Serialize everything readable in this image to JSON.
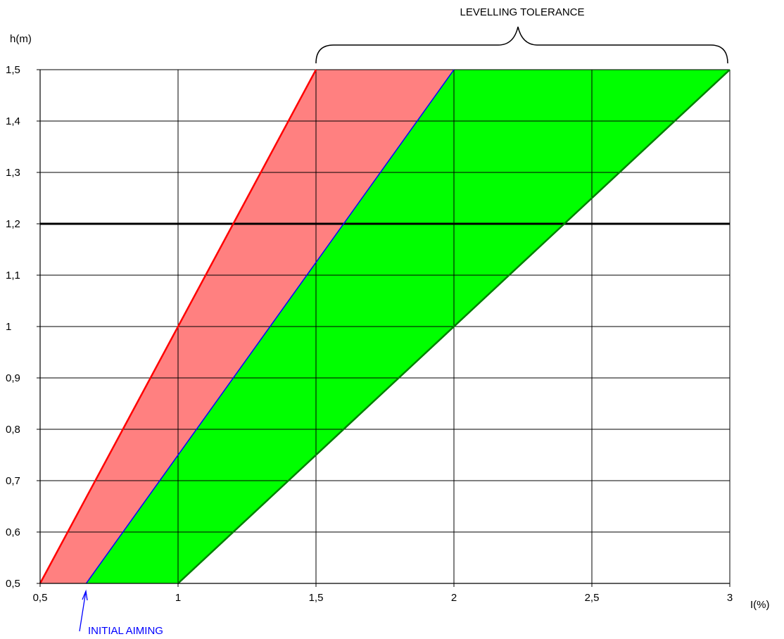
{
  "chart_data": {
    "type": "area",
    "title": "",
    "xlabel": "I(%)",
    "ylabel": "h(m)",
    "xlim": [
      0.5,
      3
    ],
    "ylim": [
      0.5,
      1.5
    ],
    "x_ticks": [
      0.5,
      1,
      1.5,
      2,
      2.5,
      3
    ],
    "x_tick_labels": [
      "0,5",
      "1",
      "1,5",
      "2",
      "2,5",
      "3"
    ],
    "y_ticks": [
      0.5,
      0.6,
      0.7,
      0.8,
      0.9,
      1,
      1.1,
      1.2,
      1.3,
      1.4,
      1.5
    ],
    "y_tick_labels": [
      "0,5",
      "0,6",
      "0,7",
      "0,8",
      "0,9",
      "1",
      "1,1",
      "1,2",
      "1,3",
      "1,4",
      "1,5"
    ],
    "grid": true,
    "legend": "none",
    "regions": [
      {
        "id": "red-zone",
        "color": "#ff8080",
        "points": [
          [
            0.5,
            0.5
          ],
          [
            1.5,
            1.5
          ],
          [
            2,
            1.5
          ],
          [
            0.667,
            0.5
          ]
        ]
      },
      {
        "id": "green-zone",
        "color": "#00ff00",
        "points": [
          [
            0.667,
            0.5
          ],
          [
            2,
            1.5
          ],
          [
            3,
            1.5
          ],
          [
            1,
            0.5
          ]
        ]
      }
    ],
    "series": [
      {
        "id": "red-line",
        "color": "#ff0000",
        "x": [
          0.5,
          1.5
        ],
        "y": [
          0.5,
          1.5
        ]
      },
      {
        "id": "blue-line",
        "color": "#0000ff",
        "x": [
          0.667,
          2
        ],
        "y": [
          0.5,
          1.5
        ]
      },
      {
        "id": "green-line",
        "color": "#008000",
        "x": [
          1,
          3
        ],
        "y": [
          0.5,
          1.5
        ]
      }
    ],
    "reference_line": {
      "y": 1.2,
      "color": "#000000"
    },
    "annotations": [
      {
        "id": "levelling-tolerance",
        "text": "LEVELLING TOLERANCE",
        "color": "#000000",
        "x_range": [
          1.5,
          3
        ]
      },
      {
        "id": "initial-aiming",
        "text": "INITIAL AIMING",
        "color": "#0000ff",
        "x": 0.667,
        "y": 0.5
      }
    ]
  }
}
